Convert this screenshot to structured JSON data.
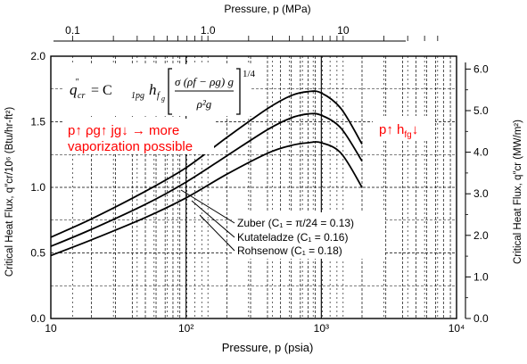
{
  "chart_data": {
    "type": "line",
    "xscale": "log",
    "xlim": [
      10,
      10000
    ],
    "ylim": [
      0,
      2.0
    ],
    "xlabel": "Pressure, p (psia)",
    "ylabel": "Critical Heat Flux, q″cr/10⁶ (Btu/hr-ft²)",
    "x2label": "Pressure, p (MPa)",
    "y2label": "Critical Heat Flux, q″cr (MW/m²)",
    "x_ticks": [
      "10",
      "10²",
      "10³",
      "10⁴"
    ],
    "y_ticks": [
      "0.0",
      "0.5",
      "1.0",
      "1.5",
      "2.0"
    ],
    "x2_ticks": [
      "0.1",
      "1.0",
      "10"
    ],
    "y2_ticks": [
      "0.0",
      "1.0",
      "2.0",
      "3.0",
      "4.0",
      "5.0",
      "6.0"
    ],
    "grid": true,
    "series": [
      {
        "name": "Zuber (C₁ = π/24 = 0.13)",
        "x": [
          10,
          20,
          50,
          100,
          200,
          400,
          600,
          800,
          1000,
          1400,
          2000
        ],
        "y": [
          0.48,
          0.6,
          0.77,
          0.92,
          1.1,
          1.26,
          1.32,
          1.34,
          1.34,
          1.26,
          1.0
        ]
      },
      {
        "name": "Kutateladze (C₁ = 0.16)",
        "x": [
          10,
          20,
          50,
          100,
          200,
          400,
          600,
          800,
          1000,
          1400,
          2000
        ],
        "y": [
          0.55,
          0.68,
          0.87,
          1.04,
          1.24,
          1.44,
          1.53,
          1.56,
          1.55,
          1.45,
          1.2
        ]
      },
      {
        "name": "Rohsenow (C₁ = 0.18)",
        "x": [
          10,
          20,
          50,
          100,
          200,
          400,
          600,
          800,
          1000,
          1400,
          2000
        ],
        "y": [
          0.62,
          0.76,
          0.97,
          1.15,
          1.38,
          1.6,
          1.7,
          1.73,
          1.72,
          1.6,
          1.33
        ]
      }
    ]
  },
  "formula": {
    "q": "q",
    "q_sup": "″",
    "q_sub": "cr",
    "equals": "= C",
    "c_sub": "1pg",
    "h": "h",
    "h_sub": "f",
    "h_subsub": "g",
    "num": "σ (ρf − ρg) g",
    "den": "ρ²g",
    "exponent": "1/4"
  },
  "annotations": {
    "left_line1": "p↑ ρg↑ jg↓ → more",
    "left_line2": "vaporization possible",
    "right_main": "p↑ h",
    "right_sub": "fg",
    "right_arrow": "↓"
  },
  "legend_labels": {
    "zuber": "Zuber (C₁ = π/24 = 0.13)",
    "kutateladze": "Kutateladze (C₁ = 0.16)",
    "rohsenow": "Rohsenow (C₁ = 0.18)"
  },
  "colors": {
    "annotation": "#ff0000",
    "curve": "#000000",
    "grid": "#000000"
  }
}
